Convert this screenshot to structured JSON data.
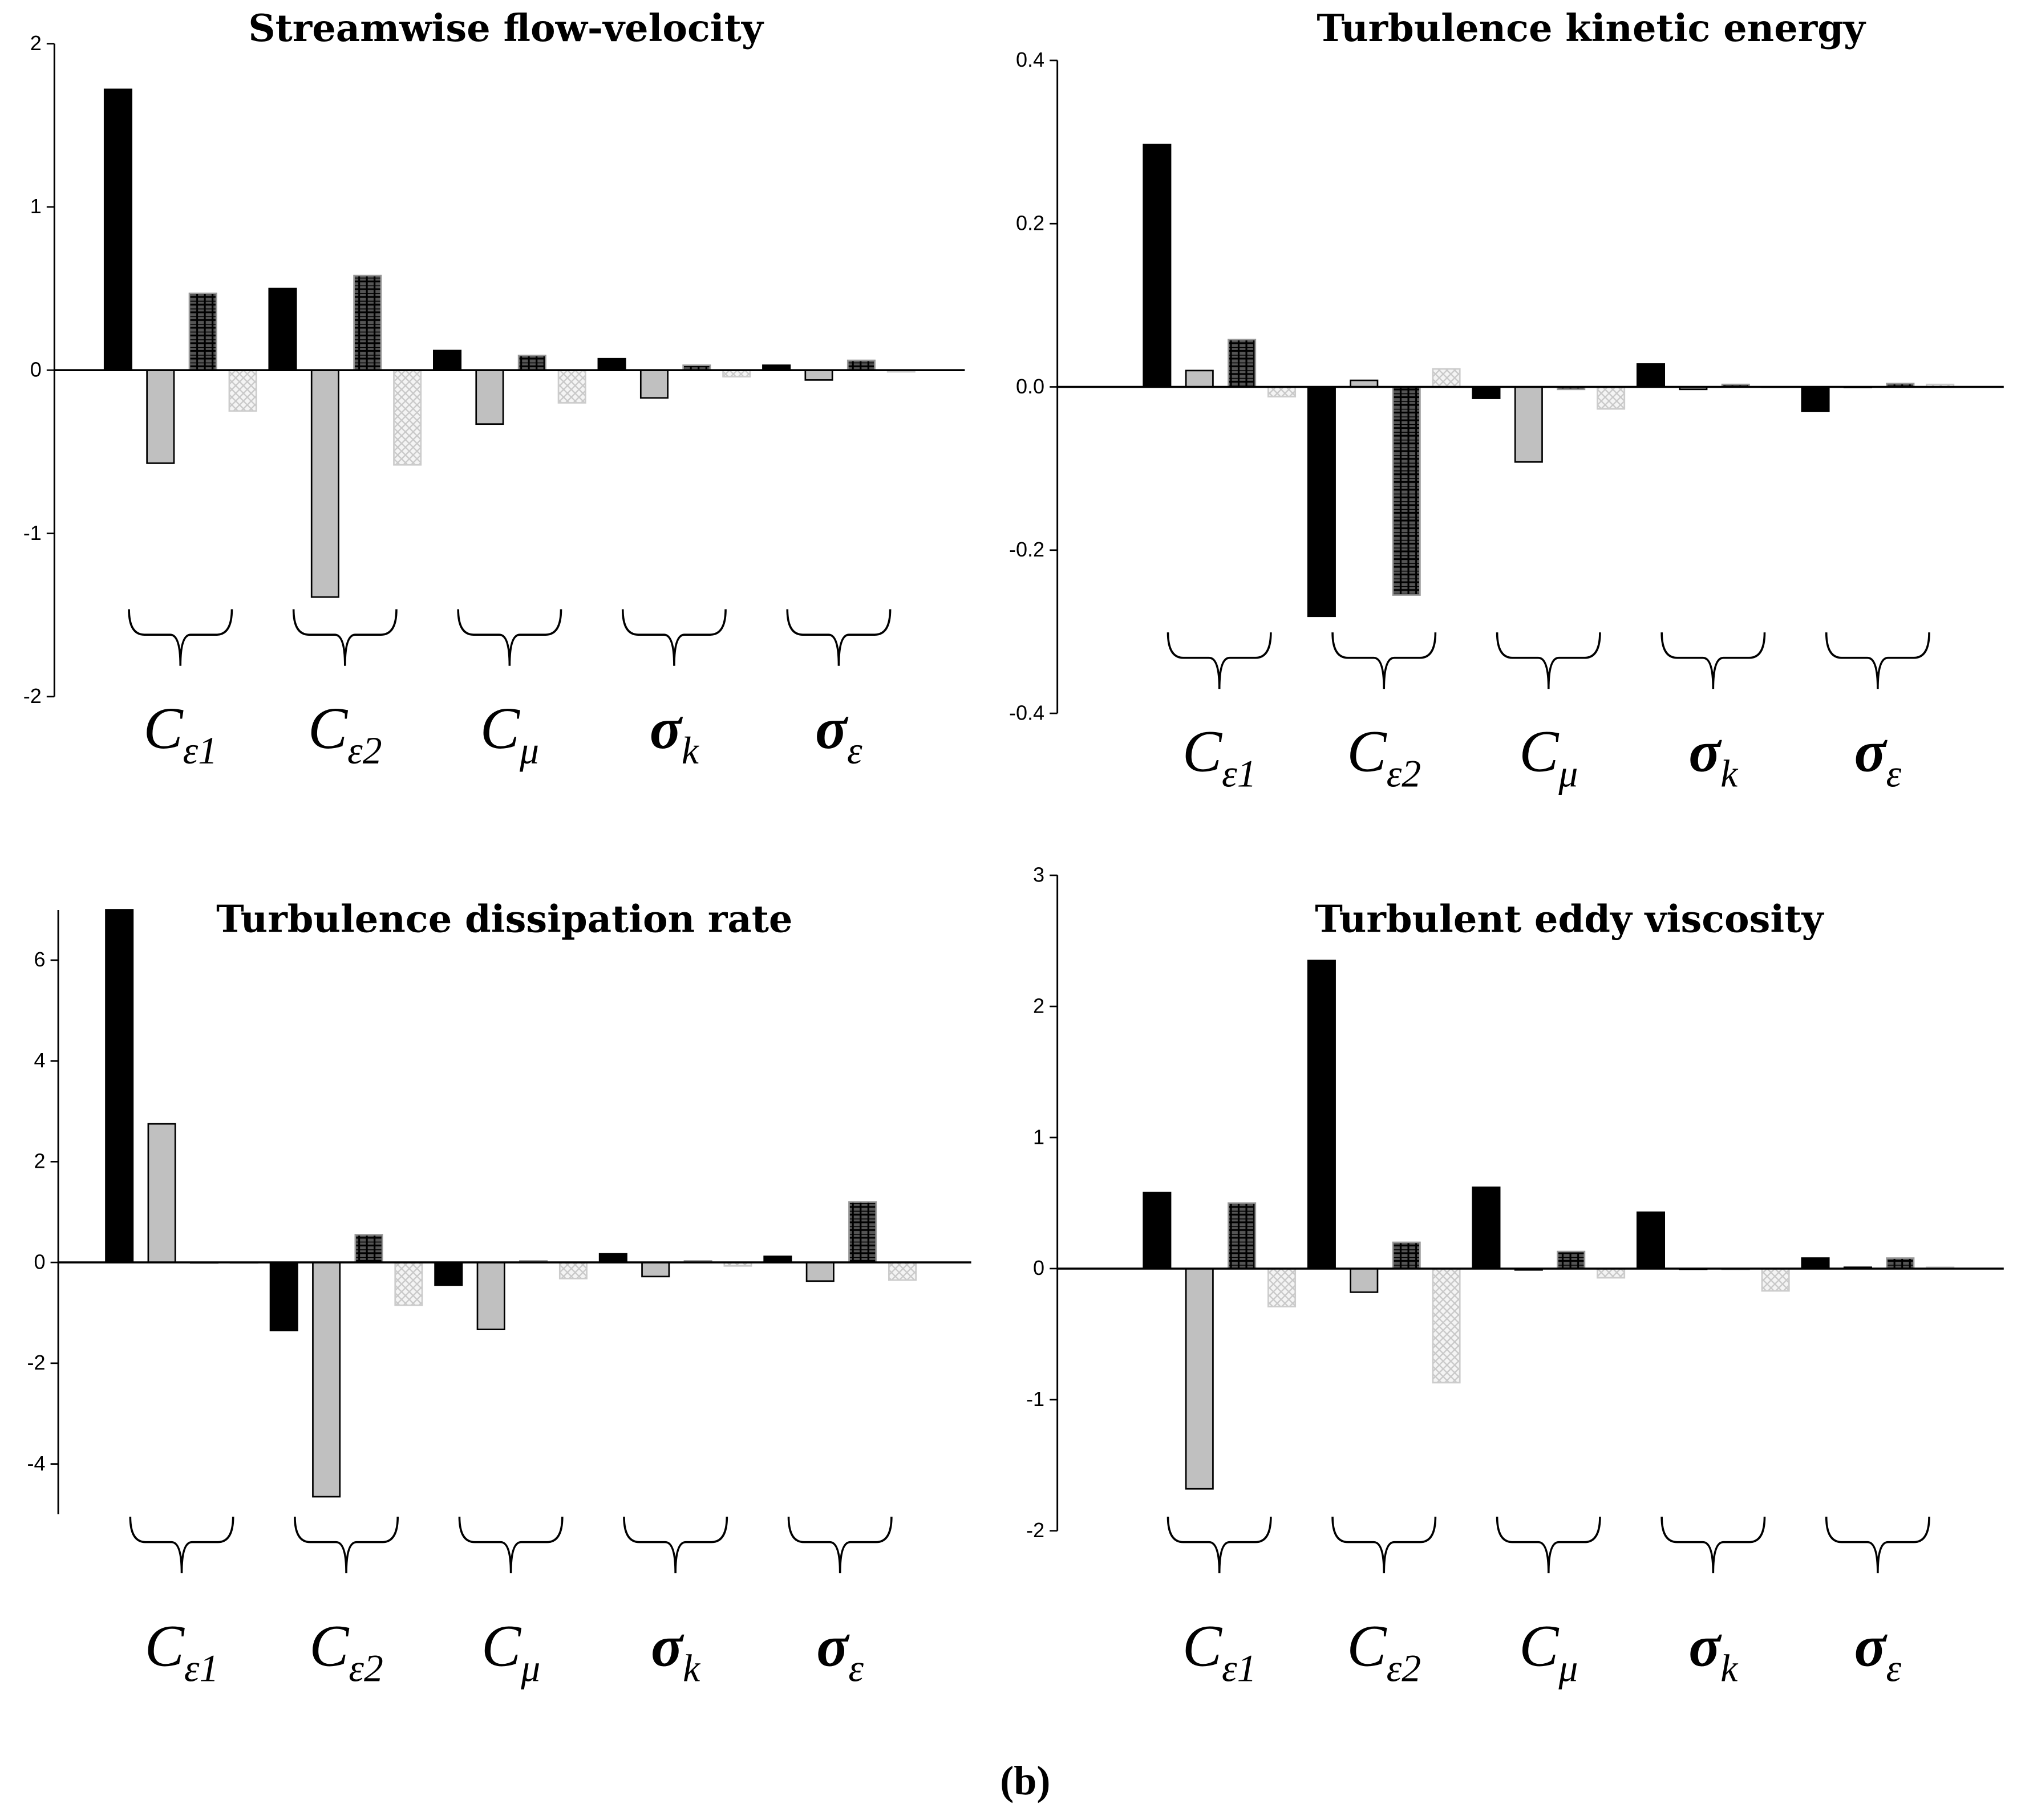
{
  "caption": "(b)",
  "caption_parts": [
    "(",
    "b",
    ")"
  ],
  "chart_data": [
    {
      "type": "bar",
      "title": "Streamwise flow-velocity",
      "ylim": [
        -2,
        2
      ],
      "yticks": [
        2,
        1,
        0,
        -1,
        -2
      ],
      "ytick_labels": [
        "2",
        "1",
        "0",
        "-1",
        "-2"
      ],
      "categories": [
        {
          "main": "C",
          "sub": "ε1"
        },
        {
          "main": "C",
          "sub": "ε2"
        },
        {
          "main": "C",
          "sub": "μ"
        },
        {
          "main": "σ",
          "sub": "k"
        },
        {
          "main": "σ",
          "sub": "ε"
        }
      ],
      "series": [
        {
          "style": "black",
          "values": [
            1.72,
            0.5,
            0.12,
            0.07,
            0.03
          ]
        },
        {
          "style": "gray",
          "values": [
            -0.57,
            -1.39,
            -0.33,
            -0.17,
            -0.06
          ]
        },
        {
          "style": "dark-pattern",
          "values": [
            0.47,
            0.58,
            0.09,
            0.03,
            0.06
          ]
        },
        {
          "style": "light-pattern",
          "values": [
            -0.25,
            -0.58,
            -0.2,
            -0.04,
            -0.01
          ]
        }
      ]
    },
    {
      "type": "bar",
      "title": "Turbulence kinetic energy",
      "ylim": [
        -0.4,
        0.4
      ],
      "yticks": [
        0.4,
        0.2,
        0.0,
        -0.2,
        -0.4
      ],
      "ytick_labels": [
        "0.4",
        "0.2",
        "0.0",
        "-0.2",
        "-0.4"
      ],
      "categories": [
        {
          "main": "C",
          "sub": "ε1"
        },
        {
          "main": "C",
          "sub": "ε2"
        },
        {
          "main": "C",
          "sub": "μ"
        },
        {
          "main": "σ",
          "sub": "k"
        },
        {
          "main": "σ",
          "sub": "ε"
        }
      ],
      "series": [
        {
          "style": "black",
          "values": [
            0.297,
            -0.281,
            -0.014,
            0.028,
            -0.03
          ]
        },
        {
          "style": "gray",
          "values": [
            0.02,
            0.008,
            -0.092,
            -0.003,
            0.0
          ]
        },
        {
          "style": "dark-pattern",
          "values": [
            0.058,
            -0.255,
            -0.003,
            0.003,
            0.004
          ]
        },
        {
          "style": "light-pattern",
          "values": [
            -0.012,
            0.022,
            -0.027,
            0.0,
            0.003
          ]
        }
      ]
    },
    {
      "type": "bar",
      "title": "Turbulence dissipation rate",
      "ylim": [
        -5,
        7
      ],
      "yticks": [
        6,
        4,
        2,
        0,
        -2,
        -4
      ],
      "ytick_labels": [
        "6",
        "4",
        "2",
        "0",
        "-2",
        "-4"
      ],
      "categories": [
        {
          "main": "C",
          "sub": "ε1"
        },
        {
          "main": "C",
          "sub": "ε2"
        },
        {
          "main": "C",
          "sub": "μ"
        },
        {
          "main": "σ",
          "sub": "k"
        },
        {
          "main": "σ",
          "sub": "ε"
        }
      ],
      "series": [
        {
          "style": "black",
          "values": [
            7.0,
            -1.35,
            -0.45,
            0.17,
            0.12
          ]
        },
        {
          "style": "gray",
          "values": [
            2.75,
            -4.65,
            -1.33,
            -0.28,
            -0.37
          ]
        },
        {
          "style": "dark-pattern",
          "values": [
            0.0,
            0.55,
            0.03,
            0.03,
            1.2
          ]
        },
        {
          "style": "light-pattern",
          "values": [
            0.0,
            -0.85,
            -0.32,
            -0.07,
            -0.35
          ]
        }
      ]
    },
    {
      "type": "bar",
      "title": "Turbulent eddy viscosity",
      "ylim": [
        -2,
        3
      ],
      "yticks": [
        3,
        2,
        1,
        0,
        -1,
        -2
      ],
      "ytick_labels": [
        "3",
        "2",
        "1",
        "0",
        "-1",
        "-2"
      ],
      "categories": [
        {
          "main": "C",
          "sub": "ε1"
        },
        {
          "main": "C",
          "sub": "ε2"
        },
        {
          "main": "C",
          "sub": "μ"
        },
        {
          "main": "σ",
          "sub": "k"
        },
        {
          "main": "σ",
          "sub": "ε"
        }
      ],
      "series": [
        {
          "style": "black",
          "values": [
            0.58,
            2.35,
            0.62,
            0.43,
            0.08
          ]
        },
        {
          "style": "gray",
          "values": [
            -1.68,
            -0.18,
            -0.01,
            0.0,
            0.01
          ]
        },
        {
          "style": "dark-pattern",
          "values": [
            0.5,
            0.2,
            0.13,
            0.0,
            0.08
          ]
        },
        {
          "style": "light-pattern",
          "values": [
            -0.29,
            -0.87,
            -0.07,
            -0.17,
            0.01
          ]
        }
      ]
    }
  ],
  "colors": {
    "black": "#000000",
    "gray": "#c0c0c0",
    "dark": "#1a1a1a",
    "light": "#e0e0e0"
  }
}
